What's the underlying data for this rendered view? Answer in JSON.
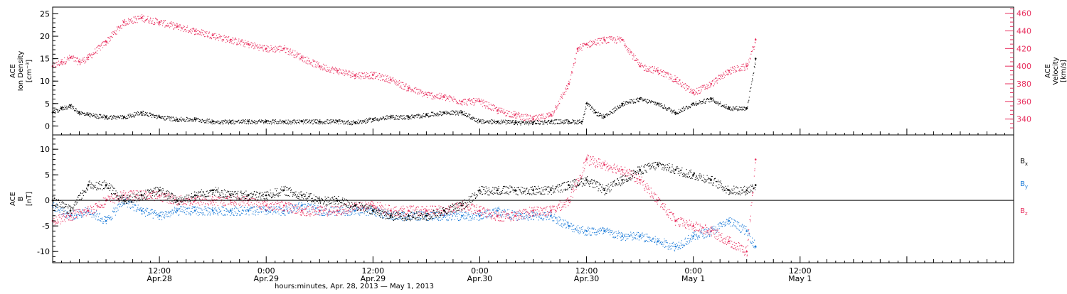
{
  "colors": {
    "black": "#000000",
    "pink": "#e8305f",
    "blue": "#1a7ad8",
    "axis": "#000000"
  },
  "x_axis": {
    "title": "hours:minutes, Apr. 28, 2013 — May  1, 2013",
    "range_hours": [
      0,
      108
    ],
    "ticks": [
      {
        "h": 12,
        "line1": "12:00",
        "line2": "Apr.28"
      },
      {
        "h": 24,
        "line1": "0:00",
        "line2": "Apr.29"
      },
      {
        "h": 36,
        "line1": "12:00",
        "line2": "Apr.29"
      },
      {
        "h": 48,
        "line1": "0:00",
        "line2": "Apr.30"
      },
      {
        "h": 60,
        "line1": "12:00",
        "line2": "Apr.30"
      },
      {
        "h": 72,
        "line1": "0:00",
        "line2": "May 1"
      },
      {
        "h": 84,
        "line1": "12:00",
        "line2": "May 1"
      }
    ]
  },
  "chart_data": [
    {
      "type": "scatter",
      "panel": "top",
      "ylabel_left": [
        "ACE",
        "Ion Density",
        "[cm⁻³]"
      ],
      "ylabel_right": [
        "ACE",
        "Velocity",
        "[km/s]"
      ],
      "ylim_left": [
        -2,
        26.5
      ],
      "ylim_right": [
        322,
        467
      ],
      "left_ticks": [
        0,
        5,
        10,
        15,
        20,
        25
      ],
      "right_ticks": [
        340,
        360,
        380,
        400,
        420,
        440,
        460
      ],
      "series": [
        {
          "axis": "left",
          "color": "black",
          "x": [
            0,
            1,
            2,
            3,
            4,
            6,
            8,
            10,
            12,
            14,
            16,
            18,
            20,
            22,
            24,
            26,
            28,
            30,
            32,
            34,
            36,
            38,
            40,
            42,
            44,
            46,
            48,
            50,
            52,
            54,
            56,
            58,
            59.5,
            60,
            61,
            62,
            64,
            66,
            68,
            70,
            72,
            74,
            76,
            78,
            79
          ],
          "y": [
            3,
            4,
            4.5,
            3,
            2.5,
            2,
            2,
            3,
            2,
            1.5,
            1.5,
            1,
            1,
            1,
            1,
            1,
            1,
            1,
            1,
            0.8,
            1.5,
            2,
            2,
            2.5,
            3,
            3,
            1,
            1,
            0.8,
            0.8,
            1,
            1,
            1,
            5,
            3,
            2,
            5,
            6,
            5,
            3,
            5,
            6,
            4,
            4,
            15
          ]
        },
        {
          "axis": "right",
          "color": "pink",
          "x": [
            0,
            1,
            2,
            3,
            4,
            6,
            8,
            10,
            12,
            14,
            16,
            18,
            20,
            22,
            24,
            26,
            28,
            30,
            32,
            34,
            36,
            38,
            40,
            42,
            44,
            46,
            48,
            50,
            52,
            54,
            56,
            58,
            59,
            60,
            62,
            64,
            66,
            68,
            70,
            72,
            74,
            76,
            78,
            79
          ],
          "y": [
            400,
            405,
            410,
            405,
            410,
            428,
            450,
            455,
            450,
            445,
            440,
            435,
            430,
            425,
            420,
            420,
            410,
            400,
            395,
            390,
            390,
            385,
            375,
            368,
            365,
            360,
            360,
            350,
            345,
            340,
            345,
            380,
            420,
            425,
            430,
            430,
            400,
            395,
            385,
            370,
            380,
            395,
            400,
            430
          ]
        }
      ]
    },
    {
      "type": "scatter",
      "panel": "bottom",
      "ylabel": [
        "ACE",
        "B",
        "[nT]"
      ],
      "ylim": [
        -12.2,
        12.8
      ],
      "ticks": [
        -10,
        -5,
        0,
        5,
        10
      ],
      "series": [
        {
          "name": "Bx",
          "label_main": "B",
          "label_sub": "x",
          "color": "black",
          "x": [
            0,
            2,
            4,
            6,
            8,
            10,
            12,
            14,
            16,
            18,
            20,
            22,
            24,
            26,
            28,
            30,
            32,
            34,
            36,
            38,
            40,
            42,
            44,
            46,
            48,
            50,
            52,
            54,
            56,
            58,
            60,
            62,
            64,
            66,
            68,
            70,
            72,
            74,
            76,
            78,
            79
          ],
          "y": [
            0,
            -2,
            3,
            3,
            0,
            1,
            2,
            0,
            1,
            2,
            1,
            1,
            1,
            2,
            1,
            0,
            0,
            -1,
            -2,
            -3,
            -3,
            -3,
            -2,
            -1,
            2,
            2,
            2,
            2,
            2,
            3,
            4,
            2,
            4,
            6,
            7,
            6,
            5,
            4,
            2,
            2,
            3
          ]
        },
        {
          "name": "By",
          "label_main": "B",
          "label_sub": "y",
          "color": "blue",
          "x": [
            0,
            2,
            4,
            6,
            8,
            10,
            12,
            14,
            16,
            18,
            20,
            22,
            24,
            26,
            28,
            30,
            32,
            34,
            36,
            38,
            40,
            42,
            44,
            46,
            48,
            50,
            52,
            54,
            56,
            58,
            60,
            62,
            64,
            66,
            68,
            70,
            72,
            74,
            76,
            78,
            79
          ],
          "y": [
            -1,
            -3,
            -2,
            -4,
            0,
            -2,
            -3,
            -2,
            -2,
            -2,
            -2,
            -2,
            -2,
            -2,
            -1,
            -2,
            -2,
            -2,
            -2,
            -3,
            -3,
            -3,
            -3,
            -3,
            -3,
            -2,
            -3,
            -3,
            -3,
            -5,
            -6,
            -6,
            -7,
            -7,
            -8,
            -9,
            -7,
            -6,
            -4,
            -6,
            -9
          ]
        },
        {
          "name": "Bz",
          "label_main": "B",
          "label_sub": "z",
          "color": "pink",
          "x": [
            0,
            2,
            4,
            6,
            8,
            10,
            12,
            14,
            16,
            18,
            20,
            22,
            24,
            26,
            28,
            30,
            32,
            34,
            36,
            38,
            40,
            42,
            44,
            46,
            48,
            50,
            52,
            54,
            56,
            58,
            60,
            62,
            64,
            66,
            68,
            70,
            72,
            74,
            76,
            78,
            79
          ],
          "y": [
            -4,
            -3,
            -2,
            0,
            1,
            1,
            1,
            0,
            0,
            0,
            0,
            0,
            -1,
            -1,
            -2,
            -2,
            -2,
            -1,
            -1,
            -2,
            -2,
            -2,
            -2,
            -1,
            -2,
            -3,
            -3,
            -2,
            -2,
            0,
            8,
            7,
            6,
            4,
            0,
            -4,
            -5,
            -6,
            -8,
            -10,
            8
          ]
        }
      ]
    }
  ]
}
